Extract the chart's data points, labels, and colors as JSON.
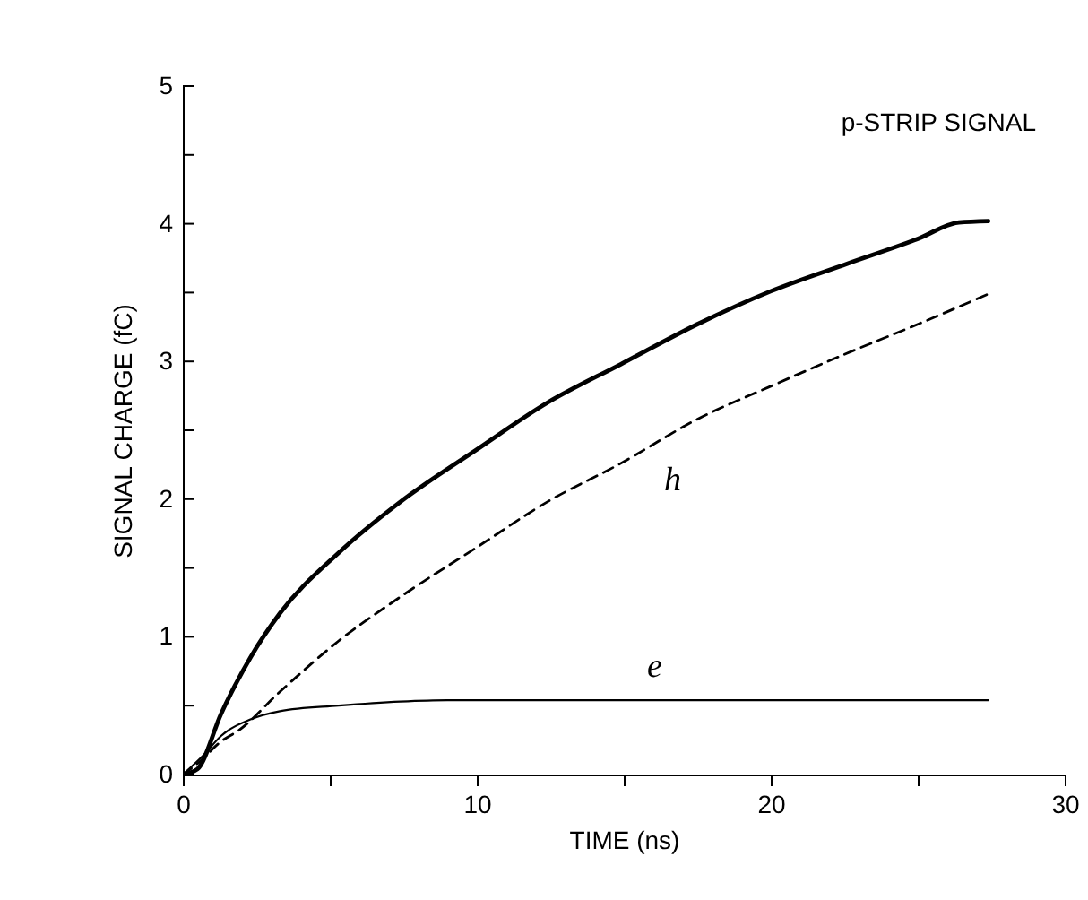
{
  "chart_data": {
    "type": "line",
    "xlabel": "TIME (ns)",
    "ylabel": "SIGNAL CHARGE (fC)",
    "annotations": [
      "p-STRIP SIGNAL"
    ],
    "xlim": [
      0,
      30
    ],
    "xticks": [
      0,
      {
        "value": 5,
        "label": null
      },
      10,
      {
        "value": 15,
        "label": null
      },
      20,
      {
        "value": 25,
        "label": null
      },
      30
    ],
    "ylim": [
      0,
      5
    ],
    "yticks": [
      0,
      {
        "value": 0.5,
        "label": null
      },
      1,
      {
        "value": 1.5,
        "label": null
      },
      2,
      {
        "value": 2.5,
        "label": null
      },
      3,
      {
        "value": 3.5,
        "label": null
      },
      4,
      {
        "value": 4.5,
        "label": null
      },
      5
    ],
    "series": [
      {
        "color": "#000000",
        "line_style": "solid",
        "x": [
          0,
          0.5,
          1.3,
          2.3,
          3.3,
          5.3,
          7.4,
          10,
          12.4,
          14.9,
          17.5,
          20,
          22.6,
          25,
          26.4,
          27.4
        ],
        "values": [
          0,
          0.04,
          0.44,
          0.85,
          1.17,
          1.61,
          1.98,
          2.36,
          2.7,
          2.98,
          3.27,
          3.51,
          3.71,
          3.89,
          4.01,
          4.02
        ]
      },
      {
        "name": "h",
        "color": "#000000",
        "line_style": "dashed",
        "x": [
          0,
          0.5,
          1.3,
          1.9,
          3.3,
          5.3,
          7.4,
          10,
          12.4,
          14.9,
          17.5,
          20,
          22.6,
          25,
          27.4
        ],
        "values": [
          0,
          0.08,
          0.24,
          0.32,
          0.6,
          0.97,
          1.29,
          1.65,
          1.98,
          2.26,
          2.58,
          2.82,
          3.06,
          3.27,
          3.49
        ]
      },
      {
        "name": "e",
        "color": "#000000",
        "line_style": "solid",
        "x": [
          0,
          0.7,
          1.3,
          2.3,
          3.3,
          5.3,
          7.4,
          9,
          27.4
        ],
        "values": [
          0,
          0.14,
          0.28,
          0.4,
          0.46,
          0.5,
          0.53,
          0.54,
          0.54
        ]
      }
    ]
  }
}
